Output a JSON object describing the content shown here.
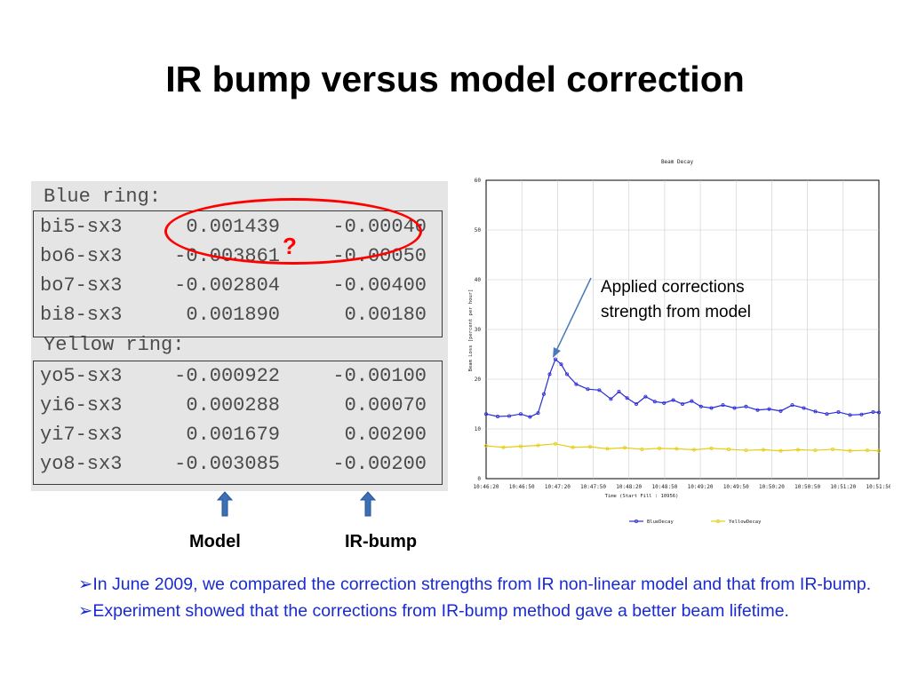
{
  "slide": {
    "title": "IR bump versus model correction"
  },
  "table": {
    "blue_header": "Blue ring:",
    "yellow_header": "Yellow ring:",
    "blue_rows": [
      {
        "name": "bi5-sx3",
        "model": "0.001439",
        "irbump": "-0.00040"
      },
      {
        "name": "bo6-sx3",
        "model": "-0.003861",
        "irbump": "-0.00050"
      },
      {
        "name": "bo7-sx3",
        "model": "-0.002804",
        "irbump": "-0.00400"
      },
      {
        "name": "bi8-sx3",
        "model": "0.001890",
        "irbump": "0.00180"
      }
    ],
    "yellow_rows": [
      {
        "name": "yo5-sx3",
        "model": "-0.000922",
        "irbump": "-0.00100"
      },
      {
        "name": "yi6-sx3",
        "model": "0.000288",
        "irbump": "0.00070"
      },
      {
        "name": "yi7-sx3",
        "model": "0.001679",
        "irbump": "0.00200"
      },
      {
        "name": "yo8-sx3",
        "model": "-0.003085",
        "irbump": "-0.00200"
      }
    ],
    "question_mark": "?",
    "model_label": "Model",
    "irbump_label": "IR-bump",
    "highlight_color": "#ff0000",
    "arrow_color": "#3b6fb6"
  },
  "annotation": {
    "text": "Applied corrections strength from model"
  },
  "bullets": [
    {
      "mark": "➢",
      "text": "In June 2009, we compared the correction strengths from IR non-linear model and that from IR-bump."
    },
    {
      "mark": "➢",
      "text": "Experiment showed that the corrections from  IR-bump method gave a better beam lifetime."
    }
  ],
  "chart_data": {
    "type": "line",
    "title": "Beam Decay",
    "xlabel": "Time (Start Fill : 10956)",
    "ylabel": "Beam Loss [percent per hour]",
    "ylim": [
      0,
      60
    ],
    "yticks": [
      "0",
      "10",
      "20",
      "30",
      "40",
      "50",
      "60"
    ],
    "xticks": [
      "10:46:20",
      "10:46:50",
      "10:47:20",
      "10:47:50",
      "10:48:20",
      "10:48:50",
      "10:49:20",
      "10:49:50",
      "10:50:20",
      "10:50:50",
      "10:51:20",
      "10:51:50"
    ],
    "x_seconds_range": [
      0,
      340
    ],
    "legend_position": "bottom",
    "grid": true,
    "series": [
      {
        "name": "BlueDecay",
        "color": "#2a2ad8",
        "x": [
          0,
          10,
          20,
          30,
          38,
          45,
          50,
          55,
          60,
          65,
          70,
          78,
          88,
          98,
          108,
          115,
          122,
          130,
          138,
          146,
          154,
          162,
          170,
          178,
          186,
          195,
          205,
          215,
          225,
          235,
          245,
          255,
          265,
          275,
          285,
          295,
          305,
          315,
          325,
          335,
          340
        ],
        "values": [
          13,
          12.5,
          12.6,
          13,
          12.4,
          13.2,
          17,
          21,
          24,
          23,
          21,
          19,
          18,
          17.8,
          16,
          17.5,
          16.2,
          15,
          16.5,
          15.5,
          15.2,
          15.8,
          15,
          15.6,
          14.5,
          14.2,
          14.8,
          14.2,
          14.5,
          13.8,
          14,
          13.6,
          14.8,
          14.2,
          13.5,
          13,
          13.4,
          12.8,
          12.9,
          13.4,
          13.3
        ]
      },
      {
        "name": "YellowDecay",
        "color": "#e8cc12",
        "x": [
          0,
          15,
          30,
          45,
          60,
          75,
          90,
          105,
          120,
          135,
          150,
          165,
          180,
          195,
          210,
          225,
          240,
          255,
          270,
          285,
          300,
          315,
          330,
          340
        ],
        "values": [
          6.6,
          6.3,
          6.5,
          6.7,
          7,
          6.3,
          6.4,
          6,
          6.2,
          5.9,
          6.1,
          6,
          5.8,
          6.1,
          5.9,
          5.7,
          5.8,
          5.6,
          5.8,
          5.7,
          5.9,
          5.6,
          5.7,
          5.6
        ]
      }
    ]
  }
}
